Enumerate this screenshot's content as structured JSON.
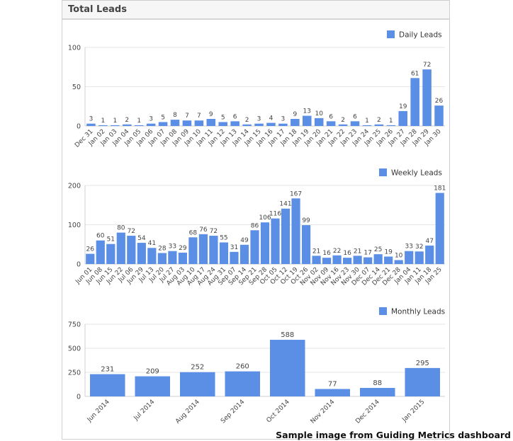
{
  "panel": {
    "title": "Total Leads",
    "footer_note": "Sample image from Guiding Metrics dashboard"
  },
  "colors": {
    "bar": "#5b8fe6",
    "grid": "#e6e6e6",
    "axis": "#d0d0d0",
    "text": "#444444"
  },
  "chart_data": [
    {
      "type": "bar",
      "legend": "Daily Leads",
      "legend_position": "top-right",
      "grid": true,
      "ylim": [
        0,
        100
      ],
      "yticks": [
        0,
        50,
        100
      ],
      "categories": [
        "Dec 31",
        "Jan 02",
        "Jan 03",
        "Jan 04",
        "Jan 05",
        "Jan 06",
        "Jan 07",
        "Jan 08",
        "Jan 09",
        "Jan 10",
        "Jan 11",
        "Jan 12",
        "Jan 13",
        "Jan 14",
        "Jan 15",
        "Jan 16",
        "Jan 17",
        "Jan 18",
        "Jan 19",
        "Jan 20",
        "Jan 21",
        "Jan 22",
        "Jan 23",
        "Jan 24",
        "Jan 25",
        "Jan 26",
        "Jan 27",
        "Jan 28",
        "Jan 29",
        "Jan 30"
      ],
      "bars": [
        3,
        1,
        1,
        2,
        1,
        3,
        5,
        8,
        7,
        7,
        9,
        5,
        6,
        2,
        3,
        4,
        3,
        9,
        13,
        10,
        6,
        2,
        6,
        1,
        2,
        1,
        19,
        61,
        72,
        26
      ],
      "values": [
        3,
        1,
        1,
        2,
        1,
        3,
        5,
        8,
        7,
        7,
        9,
        5,
        6,
        2,
        3,
        4,
        3,
        9,
        13,
        10,
        6,
        2,
        6,
        1,
        2,
        1,
        19,
        61,
        72,
        26
      ]
    },
    {
      "type": "bar",
      "legend": "Weekly Leads",
      "legend_position": "top-right",
      "grid": true,
      "ylim": [
        0,
        200
      ],
      "yticks": [
        0,
        100,
        200
      ],
      "categories": [
        "Jun 01",
        "Jun 08",
        "Jun 15",
        "Jun 22",
        "Jul 06",
        "Jun 29",
        "Jul 13",
        "Jul 20",
        "Jul 27",
        "Aug 03",
        "Aug 10",
        "Aug 17",
        "Aug 24",
        "Aug 31",
        "Sep 07",
        "Sep 14",
        "Sep 21",
        "Sep 28",
        "Oct 05",
        "Oct 12",
        "Oct 19",
        "Oct 26",
        "Nov 02",
        "Nov 09",
        "Nov 16",
        "Nov 23",
        "Nov 30",
        "Dec 07",
        "Dec 14",
        "Dec 21",
        "Dec 28",
        "Jan 04",
        "Jan 11",
        "Jan 18",
        "Jan 25"
      ],
      "values": [
        26,
        60,
        51,
        80,
        72,
        54,
        41,
        28,
        33,
        29,
        68,
        76,
        72,
        55,
        31,
        49,
        86,
        106,
        116,
        141,
        167,
        99,
        21,
        16,
        22,
        16,
        21,
        17,
        25,
        19,
        10,
        33,
        32,
        47,
        181
      ]
    },
    {
      "type": "bar",
      "legend": "Monthly Leads",
      "legend_position": "top-right",
      "grid": true,
      "ylim": [
        0,
        750
      ],
      "yticks": [
        0,
        250,
        500,
        750
      ],
      "categories": [
        "Jun 2014",
        "Jul 2014",
        "Aug 2014",
        "Sep 2014",
        "Oct 2014",
        "Nov 2014",
        "Dec 2014",
        "Jan 2015"
      ],
      "values": [
        231,
        209,
        252,
        260,
        588,
        77,
        88,
        295
      ]
    }
  ]
}
